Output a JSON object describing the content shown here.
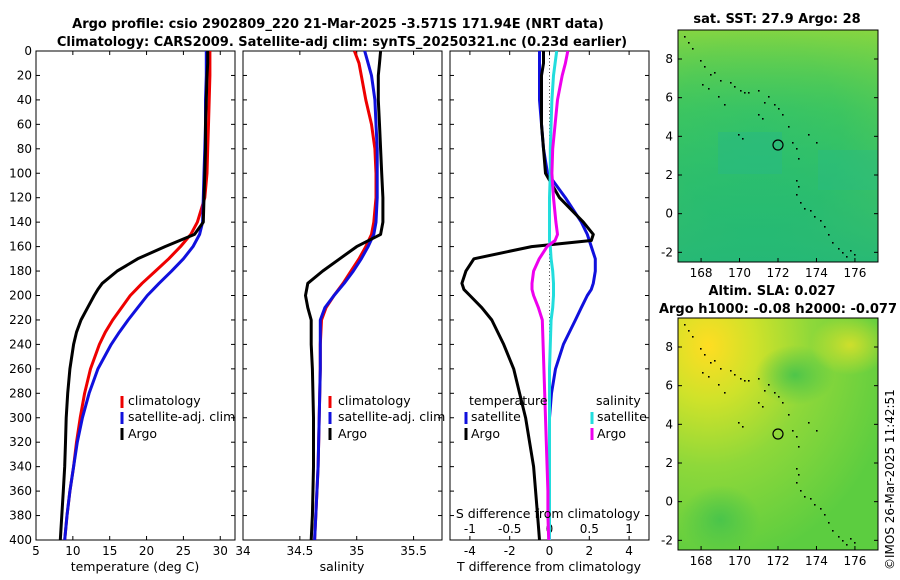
{
  "title": {
    "line1": "Argo profile: csio 2902809_220 21-Mar-2025 -3.571S 171.94E (NRT data)",
    "line2": "Climatology: CARS2009. Satellite-adj clim: synTS_20250321.nc (0.23d earlier)"
  },
  "timestamp": "©IMOS 26-Mar-2025 11:42:51",
  "colors": {
    "climatology": "#ee0000",
    "satellite": "#1010dd",
    "argo": "#000000",
    "sal_satellite": "#22dddd",
    "sal_argo": "#ee00ee"
  },
  "depth_ticks": [
    0,
    20,
    40,
    60,
    80,
    100,
    120,
    140,
    160,
    180,
    200,
    220,
    240,
    260,
    280,
    300,
    320,
    340,
    360,
    380,
    400
  ],
  "chart_data": [
    {
      "type": "line",
      "id": "temperature",
      "xlabel": "temperature (deg C)",
      "xlim": [
        5,
        32
      ],
      "ylim": [
        0,
        400
      ],
      "y_reversed": true,
      "xticks": [
        5,
        10,
        15,
        20,
        25,
        30
      ],
      "legend": [
        "climatology",
        "satellite-adj. clim",
        "Argo"
      ],
      "depth": [
        0,
        10,
        20,
        40,
        60,
        80,
        100,
        120,
        140,
        150,
        160,
        170,
        180,
        190,
        195,
        200,
        210,
        220,
        230,
        240,
        260,
        280,
        300,
        320,
        340,
        360,
        380,
        400
      ],
      "series": [
        {
          "name": "climatology",
          "color_key": "climatology",
          "values": [
            28.6,
            28.6,
            28.6,
            28.5,
            28.4,
            28.3,
            28.2,
            27.9,
            26.9,
            26,
            24.6,
            23,
            21.2,
            19.4,
            18.6,
            17.8,
            16.6,
            15.4,
            14.4,
            13.6,
            12.4,
            11.6,
            11,
            10.5,
            10.1,
            9.6,
            9.2,
            8.9
          ]
        },
        {
          "name": "satellite-adj. clim",
          "color_key": "satellite",
          "values": [
            28.1,
            28.1,
            28.1,
            28,
            28,
            27.9,
            27.8,
            27.7,
            27.6,
            27.2,
            26.3,
            25,
            23.4,
            21.7,
            20.9,
            20.1,
            18.8,
            17.5,
            16.3,
            15.2,
            13.4,
            12.2,
            11.3,
            10.6,
            10.1,
            9.6,
            9.2,
            8.9
          ]
        },
        {
          "name": "Argo",
          "color_key": "argo",
          "values": [
            28.3,
            28.3,
            28.2,
            28.1,
            28,
            28,
            27.9,
            27.8,
            27.7,
            26.5,
            22.5,
            18.8,
            16,
            14,
            13.4,
            12.9,
            12,
            11.1,
            10.5,
            10.1,
            9.6,
            9.3,
            9.1,
            9,
            8.9,
            8.7,
            8.5,
            8.3
          ]
        }
      ]
    },
    {
      "type": "line",
      "id": "salinity",
      "xlabel": "salinity",
      "xlim": [
        34,
        35.75
      ],
      "ylim": [
        0,
        400
      ],
      "y_reversed": true,
      "xticks": [
        34,
        34.5,
        35,
        35.5
      ],
      "xticklabels": [
        "34",
        "34.5",
        "35",
        "35.5"
      ],
      "legend": [
        "climatology",
        "satellite-adj. clim",
        "Argo"
      ],
      "depth": [
        0,
        10,
        20,
        40,
        60,
        80,
        100,
        120,
        140,
        150,
        160,
        170,
        180,
        190,
        200,
        210,
        220,
        240,
        260,
        300,
        340,
        380,
        400
      ],
      "series": [
        {
          "name": "climatology",
          "color_key": "climatology",
          "values": [
            34.98,
            35.02,
            35.04,
            35.08,
            35.13,
            35.16,
            35.17,
            35.17,
            35.15,
            35.13,
            35.08,
            35.02,
            34.95,
            34.88,
            34.8,
            34.73,
            34.69,
            34.68,
            34.68,
            34.67,
            34.66,
            34.64,
            34.63
          ]
        },
        {
          "name": "satellite-adj. clim",
          "color_key": "satellite",
          "values": [
            35.07,
            35.1,
            35.13,
            35.16,
            35.17,
            35.18,
            35.18,
            35.18,
            35.17,
            35.15,
            35.1,
            35.04,
            34.97,
            34.89,
            34.8,
            34.72,
            34.68,
            34.68,
            34.68,
            34.67,
            34.66,
            34.64,
            34.63
          ]
        },
        {
          "name": "Argo",
          "color_key": "argo",
          "values": [
            35.21,
            35.2,
            35.19,
            35.19,
            35.2,
            35.21,
            35.22,
            35.23,
            35.23,
            35.21,
            35.0,
            34.85,
            34.7,
            34.57,
            34.55,
            34.57,
            34.6,
            34.6,
            34.61,
            34.62,
            34.62,
            34.61,
            34.6
          ]
        }
      ]
    },
    {
      "type": "line",
      "id": "difference",
      "xlabel": "T difference from climatology",
      "xlabel_top": "S difference from climatology",
      "xlim": [
        -5,
        5
      ],
      "ylim": [
        0,
        400
      ],
      "y_reversed": true,
      "xticks": [
        -4,
        -2,
        0,
        2,
        4
      ],
      "top_xticks": [
        -1,
        -0.5,
        0,
        0.5,
        1
      ],
      "top_xticklabels": [
        "-1",
        "-0.5",
        "0",
        "0.5",
        "1"
      ],
      "top_xlim": [
        -1.25,
        1.25
      ],
      "legend": [
        "temperature",
        "satellite",
        "Argo",
        "salinity",
        "satellite",
        "Argo"
      ],
      "depth": [
        0,
        10,
        20,
        40,
        60,
        80,
        100,
        120,
        140,
        150,
        155,
        160,
        170,
        180,
        190,
        195,
        200,
        210,
        220,
        240,
        260,
        280,
        300,
        320,
        340,
        360,
        380,
        400
      ],
      "series": [
        {
          "name": "temperature satellite",
          "axis": "T",
          "color_key": "satellite",
          "values": [
            -0.5,
            -0.5,
            -0.5,
            -0.5,
            -0.4,
            -0.3,
            -0.1,
            0.8,
            1.6,
            1.9,
            2.0,
            2.1,
            2.3,
            2.3,
            2.2,
            2.1,
            1.9,
            1.6,
            1.3,
            0.7,
            0.3,
            0.1,
            0.0,
            0.0,
            0.0,
            0.0,
            0.0,
            0.0
          ]
        },
        {
          "name": "temperature Argo",
          "axis": "T",
          "color_key": "argo",
          "values": [
            -0.3,
            -0.3,
            -0.4,
            -0.4,
            -0.4,
            -0.3,
            -0.2,
            0.5,
            1.7,
            2.2,
            2.1,
            -0.9,
            -3.8,
            -4.2,
            -4.4,
            -4.3,
            -4.0,
            -3.4,
            -2.9,
            -2.3,
            -1.8,
            -1.5,
            -1.2,
            -1.0,
            -0.8,
            -0.7,
            -0.6,
            -0.5
          ]
        },
        {
          "name": "salinity satellite",
          "axis": "S",
          "color_key": "sal_satellite",
          "values": [
            0.09,
            0.07,
            0.05,
            0.03,
            0.02,
            0.01,
            0.01,
            0.0,
            0.0,
            0.0,
            0.0,
            0.01,
            0.02,
            0.04,
            0.05,
            0.05,
            0.05,
            0.04,
            0.02,
            0.01,
            0.0,
            0.0,
            0.0,
            0.0,
            0.0,
            0.0,
            0.0,
            0.0
          ]
        },
        {
          "name": "salinity Argo",
          "axis": "S",
          "color_key": "sal_argo",
          "values": [
            0.23,
            0.2,
            0.16,
            0.1,
            0.07,
            0.04,
            0.03,
            0.05,
            0.08,
            0.1,
            0.07,
            -0.03,
            -0.13,
            -0.2,
            -0.22,
            -0.22,
            -0.2,
            -0.14,
            -0.09,
            -0.08,
            -0.07,
            -0.06,
            -0.05,
            -0.04,
            -0.03,
            -0.02,
            -0.02,
            -0.01
          ]
        }
      ]
    },
    {
      "type": "heatmap",
      "id": "sst_map",
      "title": "sat. SST: 27.9 Argo: 28",
      "xlim": [
        166.8,
        177.2
      ],
      "ylim": [
        -2.5,
        9.5
      ],
      "xticks": [
        168,
        170,
        172,
        174,
        176
      ],
      "yticks": [
        -2,
        0,
        2,
        4,
        6,
        8
      ],
      "argo_position": [
        171.94,
        3.57
      ]
    },
    {
      "type": "heatmap",
      "id": "sla_map",
      "title_line1": "Altim. SLA: 0.027",
      "title_line2": "Argo h1000: -0.08 h2000: -0.077",
      "xlim": [
        166.8,
        177.2
      ],
      "ylim": [
        -2.5,
        9.5
      ],
      "xticks": [
        168,
        170,
        172,
        174,
        176
      ],
      "yticks": [
        -2,
        0,
        2,
        4,
        6,
        8
      ],
      "argo_position": [
        171.94,
        3.57
      ]
    }
  ]
}
